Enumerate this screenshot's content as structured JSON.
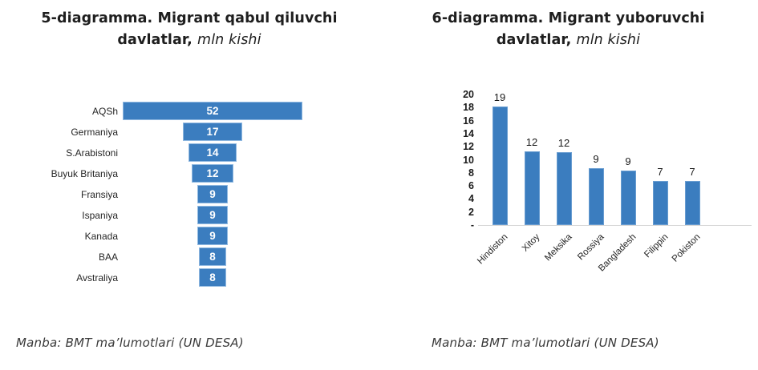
{
  "colors": {
    "bar_blue": "#3b7dbf",
    "bar_border": "#8fb8e0",
    "text_dark": "#1e1e1e",
    "baseline_gray": "#d6d6d6",
    "value_label_inside": "#ffffff"
  },
  "chart_data": [
    {
      "id": "left",
      "type": "bar",
      "variant": "horizontal-centered-funnel",
      "title_line1": "5-diagramma. Migrant qabul qiluvchi",
      "title_line2_bold": "davlatlar,",
      "title_line2_italic": "mln kishi",
      "unit": "mln kishi",
      "categories": [
        "AQSh",
        "Germaniya",
        "S.Arabistoni",
        "Buyuk Britaniya",
        "Fransiya",
        "Ispaniya",
        "Kanada",
        "BAA",
        "Avstraliya"
      ],
      "values": [
        52,
        17,
        14,
        12,
        9,
        9,
        9,
        8,
        8
      ],
      "xlim": [
        0,
        52
      ],
      "value_labels": "inside-white",
      "axes_visible": false,
      "gridlines": false,
      "bar_color": "#3b7dbf",
      "source": "Manba: BMT ma’lumotlari (UN DESA)"
    },
    {
      "id": "right",
      "type": "bar",
      "variant": "vertical-column",
      "title_line1": "6-diagramma. Migrant yuboruvchi",
      "title_line2_bold": "davlatlar,",
      "title_line2_italic": "mln kishi",
      "unit": "mln kishi",
      "categories": [
        "Hindiston",
        "Xitoy",
        "Meksika",
        "Rossiya",
        "Bangladesh",
        "Filippin",
        "Pokiston"
      ],
      "values": [
        19,
        12,
        12,
        9,
        9,
        7,
        7
      ],
      "bar_render_heights": [
        18.2,
        11.25,
        11.2,
        8.7,
        8.4,
        6.75,
        6.7
      ],
      "y_ticks": [
        "20",
        "18",
        "16",
        "14",
        "12",
        "10",
        "8",
        "6",
        "4",
        "2",
        "-"
      ],
      "ylim": [
        0,
        20
      ],
      "x_label_rotation_deg": -45,
      "value_labels": "above-bars",
      "gridlines": false,
      "legend": "none",
      "bar_color": "#3b7dbf",
      "source": "Manba: BMT ma’lumotlari (UN DESA)"
    }
  ]
}
